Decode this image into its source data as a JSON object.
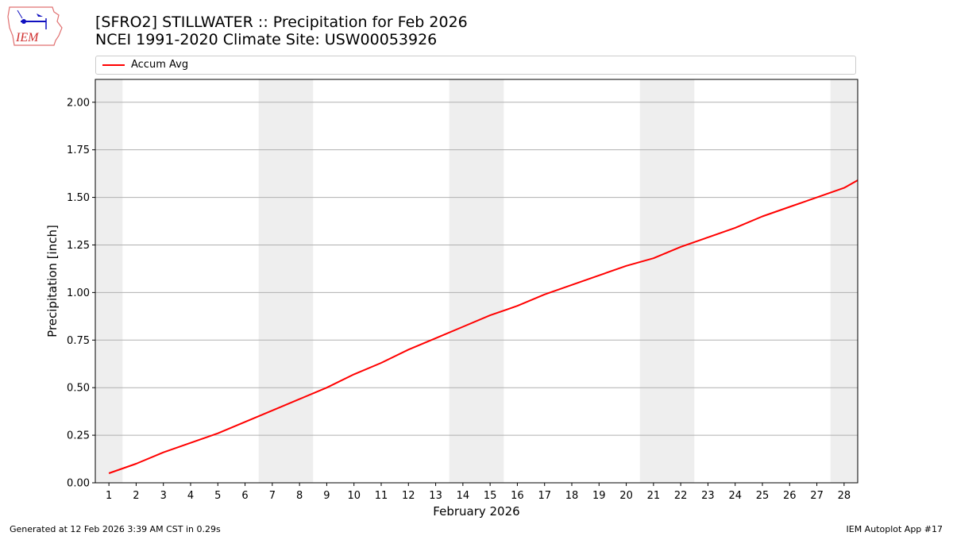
{
  "header": {
    "title_line1": "[SFRO2] STILLWATER :: Precipitation for Feb 2026",
    "title_line2": "NCEI 1991-2020 Climate Site: USW00053926",
    "logo_text": "IEM"
  },
  "legend": {
    "items": [
      {
        "label": "Accum Avg",
        "color": "#ff0000"
      }
    ]
  },
  "footer": {
    "left": "Generated at 12 Feb 2026 3:39 AM CST in 0.29s",
    "right": "IEM Autoplot App #17"
  },
  "colors": {
    "line": "#ff0000",
    "weekend_band": "#eeeeee",
    "grid": "#b0b0b0"
  },
  "chart_data": {
    "type": "line",
    "title": "[SFRO2] STILLWATER :: Precipitation for Feb 2026",
    "subtitle": "NCEI 1991-2020 Climate Site: USW00053926",
    "xlabel": "February 2026",
    "ylabel": "Precipitation [inch]",
    "ylim": [
      0,
      2.12
    ],
    "xlim": [
      0.5,
      28.5
    ],
    "yticks": [
      "0.00",
      "0.25",
      "0.50",
      "0.75",
      "1.00",
      "1.25",
      "1.50",
      "1.75",
      "2.00"
    ],
    "xticks": [
      "1",
      "2",
      "3",
      "4",
      "5",
      "6",
      "7",
      "8",
      "9",
      "10",
      "11",
      "12",
      "13",
      "14",
      "15",
      "16",
      "17",
      "18",
      "19",
      "20",
      "21",
      "22",
      "23",
      "24",
      "25",
      "26",
      "27",
      "28"
    ],
    "grid": "horizontal",
    "legend_position": "top",
    "weekend_bands": [
      [
        0.5,
        1.5
      ],
      [
        6.5,
        8.5
      ],
      [
        13.5,
        15.5
      ],
      [
        20.5,
        22.5
      ],
      [
        27.5,
        28.5
      ]
    ],
    "series": [
      {
        "name": "Accum Avg",
        "color": "#ff0000",
        "x": [
          1,
          2,
          3,
          4,
          5,
          6,
          7,
          8,
          9,
          10,
          11,
          12,
          13,
          14,
          15,
          16,
          17,
          18,
          19,
          20,
          21,
          22,
          23,
          24,
          25,
          26,
          27,
          28,
          28.5
        ],
        "values": [
          0.05,
          0.1,
          0.16,
          0.21,
          0.26,
          0.32,
          0.38,
          0.44,
          0.5,
          0.57,
          0.63,
          0.7,
          0.76,
          0.82,
          0.88,
          0.93,
          0.99,
          1.04,
          1.09,
          1.14,
          1.18,
          1.24,
          1.29,
          1.34,
          1.4,
          1.45,
          1.5,
          1.55,
          1.59
        ]
      }
    ]
  }
}
